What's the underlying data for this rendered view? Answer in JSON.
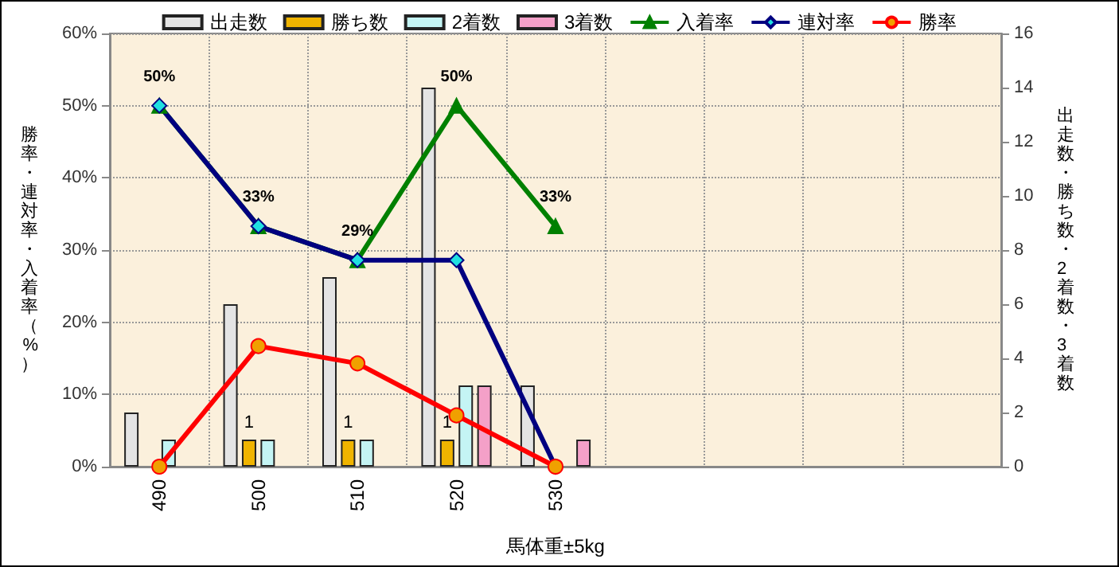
{
  "chart_data": {
    "type": "bar",
    "xlabel": "馬体重±5kg",
    "ylabel": "勝率・連対率・入着率（%）",
    "y2label": "出走数・勝ち数・2着数・3着数",
    "categories": [
      "490",
      "500",
      "510",
      "520",
      "530",
      null,
      null,
      null,
      null
    ],
    "series": [
      {
        "name": "出走数",
        "axis": "y2",
        "color": "#e4e4e4",
        "values": [
          2,
          6,
          7,
          14,
          3,
          null,
          null,
          null,
          null
        ]
      },
      {
        "name": "勝ち数",
        "axis": "y2",
        "color": "#f0b400",
        "values": [
          0,
          1,
          1,
          1,
          0,
          null,
          null,
          null,
          null
        ],
        "value_labels": [
          null,
          "1",
          "1",
          "1",
          null,
          null,
          null,
          null,
          null
        ]
      },
      {
        "name": "2着数",
        "axis": "y2",
        "color": "#c4f4f4",
        "values": [
          1,
          1,
          1,
          3,
          0,
          null,
          null,
          null,
          null
        ]
      },
      {
        "name": "3着数",
        "axis": "y2",
        "color": "#f4a0c8",
        "values": [
          0,
          0,
          0,
          3,
          1,
          null,
          null,
          null,
          null
        ]
      },
      {
        "name": "入着率",
        "type": "line",
        "marker": "triangle",
        "color": "#008000",
        "values": [
          50,
          33.3,
          28.6,
          50,
          33.3,
          null,
          null,
          null,
          null
        ],
        "value_labels": [
          "50%",
          "33%",
          "29%",
          "50%",
          "33%",
          null,
          null,
          null,
          null
        ]
      },
      {
        "name": "連対率",
        "type": "line",
        "marker": "diamond",
        "color": "#000080",
        "values": [
          50,
          33.3,
          28.6,
          28.6,
          0,
          null,
          null,
          null,
          null
        ]
      },
      {
        "name": "勝率",
        "type": "line",
        "marker": "circle",
        "color": "#ff0000",
        "values": [
          0,
          16.7,
          14.3,
          7.1,
          0,
          null,
          null,
          null,
          null
        ]
      }
    ],
    "ylim": [
      0,
      60
    ],
    "yticks": [
      {
        "value": 0,
        "label": "0%"
      },
      {
        "value": 10,
        "label": "10%"
      },
      {
        "value": 20,
        "label": "20%"
      },
      {
        "value": 30,
        "label": "30%"
      },
      {
        "value": 40,
        "label": "40%"
      },
      {
        "value": 50,
        "label": "50%"
      },
      {
        "value": 60,
        "label": "60%"
      }
    ],
    "y2lim": [
      0,
      16
    ],
    "y2ticks": [
      0,
      2,
      4,
      6,
      8,
      10,
      12,
      14,
      16
    ],
    "grid": true,
    "legend": "top"
  }
}
